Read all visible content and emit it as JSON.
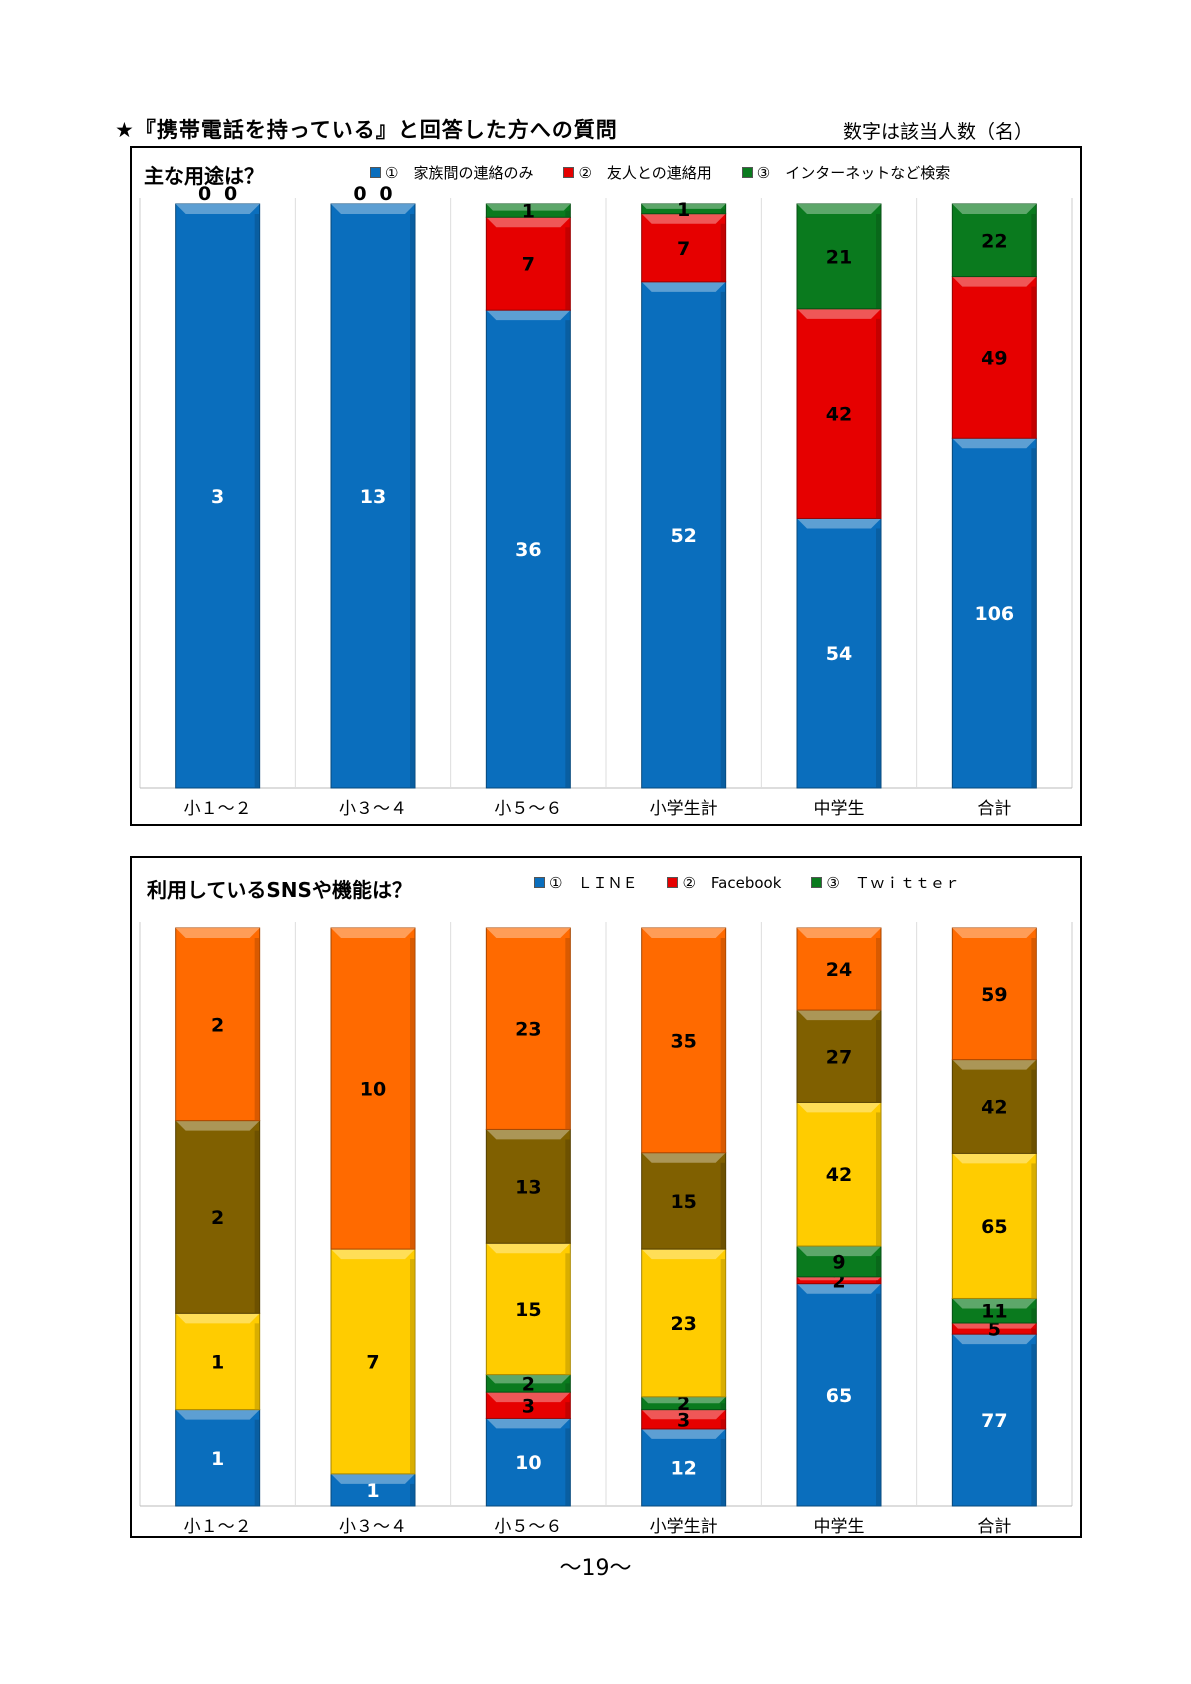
{
  "page": {
    "heading": "★『携帯電話を持っている』と回答した方への質問",
    "note": "数字は該当人数（名）",
    "page_number": "～19～"
  },
  "chart_data": [
    {
      "type": "bar",
      "stacked": true,
      "title": "主な用途は？",
      "categories": [
        "小１～２",
        "小３～４",
        "小５～６",
        "小学生計",
        "中学生",
        "合計"
      ],
      "series": [
        {
          "name": "①　家族間の連絡のみ",
          "color": "#0A6EBD",
          "values": [
            3,
            13,
            36,
            52,
            54,
            106
          ],
          "labels": [
            "3",
            "13",
            "36",
            "52",
            "54",
            "106"
          ]
        },
        {
          "name": "②　友人との連絡用",
          "color": "#E60000",
          "values": [
            0,
            0,
            7,
            7,
            42,
            49
          ],
          "labels": [
            "0",
            "0",
            "7",
            "7",
            "42",
            "49"
          ]
        },
        {
          "name": "③　インターネットなど検索",
          "color": "#0A7A1E",
          "values": [
            0,
            0,
            1,
            1,
            21,
            22
          ],
          "labels": [
            "0",
            "0",
            "1",
            "1",
            "21",
            "22"
          ]
        }
      ],
      "normalized": true,
      "ylim": [
        0,
        1
      ],
      "grid": false,
      "legend": "top"
    },
    {
      "type": "bar",
      "stacked": true,
      "title": "利用しているSNSや機能は？",
      "categories": [
        "小１～２",
        "小３～４",
        "小５～６",
        "小学生計",
        "中学生",
        "合計"
      ],
      "series": [
        {
          "name": "①　ＬＩＮＥ",
          "color": "#0A6EBD",
          "values": [
            1,
            1,
            10,
            12,
            65,
            77
          ],
          "labels": [
            "1",
            "1",
            "10",
            "12",
            "65",
            "77"
          ]
        },
        {
          "name": "②　Facebook",
          "color": "#E60000",
          "values": [
            0,
            0,
            3,
            3,
            2,
            5
          ],
          "labels": [
            "0",
            "0",
            "3",
            "3",
            "2",
            "5"
          ]
        },
        {
          "name": "③　Ｔｗｉｔｔｅｒ",
          "color": "#0A7A1E",
          "values": [
            0,
            0,
            2,
            2,
            9,
            11
          ],
          "labels": [
            "0",
            "0",
            "2",
            "2",
            "9",
            "11"
          ]
        },
        {
          "name": "",
          "color": "#FFCC00",
          "values": [
            1,
            7,
            15,
            23,
            42,
            65
          ],
          "labels": [
            "1",
            "7",
            "15",
            "23",
            "42",
            "65"
          ]
        },
        {
          "name": "",
          "color": "#806000",
          "values": [
            2,
            0,
            13,
            15,
            27,
            42
          ],
          "labels": [
            "2",
            "0",
            "13",
            "15",
            "27",
            "42"
          ]
        },
        {
          "name": "",
          "color": "#FF6A00",
          "values": [
            2,
            10,
            23,
            35,
            24,
            59
          ],
          "labels": [
            "2",
            "10",
            "23",
            "35",
            "24",
            "59"
          ]
        }
      ],
      "legend_series_count": 3,
      "normalized": true,
      "ylim": [
        0,
        1
      ],
      "grid": false,
      "legend": "top"
    }
  ]
}
